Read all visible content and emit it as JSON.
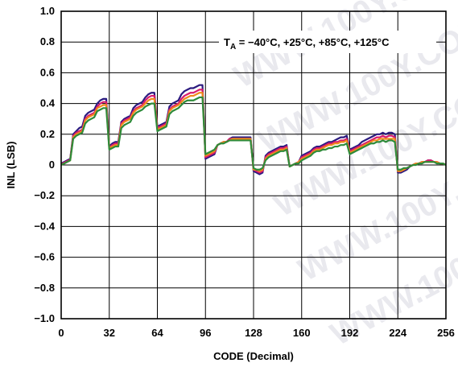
{
  "chart_data": {
    "type": "line",
    "xlabel": "CODE (Decimal)",
    "ylabel": "INL (LSB)",
    "xlim": [
      0,
      256
    ],
    "ylim": [
      -1.0,
      1.0
    ],
    "xticks": [
      0,
      32,
      64,
      96,
      128,
      160,
      192,
      224,
      256
    ],
    "xtick_labels": [
      "0",
      "32",
      "64",
      "96",
      "128",
      "160",
      "192",
      "224",
      "256"
    ],
    "yticks": [
      1.0,
      0.8,
      0.6,
      0.4,
      0.2,
      0,
      -0.2,
      -0.4,
      -0.6,
      -0.8,
      -1.0
    ],
    "ytick_labels": [
      "1.0",
      "0.8",
      "0.6",
      "0.4",
      "0.2",
      "0",
      "−0.2",
      "−0.4",
      "−0.6",
      "−0.8",
      "−1.0"
    ],
    "grid": true,
    "annotation": {
      "prefix": "T",
      "subscript": "A",
      "text": " = −40°C, +25°C, +85°C, +125°C"
    },
    "watermark": "WWW.100Y.COM.TW",
    "x": [
      0,
      2,
      4,
      6,
      8,
      10,
      12,
      14,
      16,
      18,
      20,
      22,
      24,
      26,
      28,
      30,
      32,
      34,
      36,
      38,
      40,
      42,
      44,
      46,
      48,
      50,
      52,
      54,
      56,
      58,
      60,
      62,
      64,
      66,
      68,
      70,
      72,
      74,
      76,
      78,
      80,
      82,
      84,
      86,
      88,
      90,
      92,
      94,
      96,
      98,
      100,
      102,
      104,
      106,
      108,
      110,
      112,
      114,
      116,
      118,
      120,
      122,
      124,
      126,
      128,
      130,
      132,
      134,
      136,
      138,
      140,
      142,
      144,
      146,
      148,
      150,
      152,
      154,
      156,
      158,
      160,
      162,
      164,
      166,
      168,
      170,
      172,
      174,
      176,
      178,
      180,
      182,
      184,
      186,
      188,
      190,
      192,
      194,
      196,
      198,
      200,
      202,
      204,
      206,
      208,
      210,
      212,
      214,
      216,
      218,
      220,
      222,
      224,
      226,
      228,
      230,
      232,
      234,
      236,
      238,
      240,
      242,
      244,
      246,
      248,
      250,
      252,
      254,
      256
    ],
    "series": [
      {
        "color": "#2b1a7f",
        "values": [
          0.01,
          0.02,
          0.03,
          0.04,
          0.2,
          0.22,
          0.24,
          0.25,
          0.32,
          0.34,
          0.35,
          0.36,
          0.4,
          0.42,
          0.43,
          0.43,
          0.12,
          0.14,
          0.15,
          0.15,
          0.28,
          0.3,
          0.31,
          0.32,
          0.37,
          0.39,
          0.4,
          0.41,
          0.44,
          0.46,
          0.47,
          0.47,
          0.25,
          0.26,
          0.27,
          0.28,
          0.38,
          0.4,
          0.41,
          0.42,
          0.46,
          0.48,
          0.49,
          0.5,
          0.5,
          0.51,
          0.52,
          0.52,
          0.04,
          0.05,
          0.06,
          0.07,
          0.13,
          0.14,
          0.15,
          0.15,
          0.17,
          0.18,
          0.18,
          0.18,
          0.18,
          0.18,
          0.18,
          0.18,
          -0.04,
          -0.05,
          -0.06,
          -0.05,
          0.06,
          0.08,
          0.09,
          0.1,
          0.11,
          0.12,
          0.12,
          0.13,
          -0.01,
          0.0,
          0.01,
          0.02,
          0.06,
          0.07,
          0.08,
          0.09,
          0.11,
          0.12,
          0.12,
          0.13,
          0.14,
          0.15,
          0.15,
          0.16,
          0.17,
          0.18,
          0.18,
          0.19,
          0.1,
          0.11,
          0.12,
          0.13,
          0.15,
          0.16,
          0.17,
          0.18,
          0.19,
          0.2,
          0.2,
          0.21,
          0.2,
          0.21,
          0.21,
          0.2,
          -0.05,
          -0.05,
          -0.04,
          -0.03,
          -0.01,
          0.0,
          0.01,
          0.01,
          0.02,
          0.02,
          0.03,
          0.03,
          0.02,
          0.02,
          0.01,
          0.01,
          0.0
        ]
      },
      {
        "color": "#d81b6e",
        "values": [
          0.005,
          0.015,
          0.025,
          0.035,
          0.19,
          0.21,
          0.22,
          0.23,
          0.3,
          0.32,
          0.33,
          0.34,
          0.38,
          0.4,
          0.41,
          0.41,
          0.11,
          0.13,
          0.14,
          0.14,
          0.27,
          0.29,
          0.3,
          0.31,
          0.35,
          0.37,
          0.38,
          0.39,
          0.42,
          0.44,
          0.45,
          0.45,
          0.24,
          0.25,
          0.26,
          0.27,
          0.36,
          0.38,
          0.39,
          0.4,
          0.43,
          0.45,
          0.46,
          0.47,
          0.47,
          0.48,
          0.49,
          0.49,
          0.05,
          0.06,
          0.07,
          0.08,
          0.13,
          0.14,
          0.15,
          0.15,
          0.17,
          0.17,
          0.17,
          0.17,
          0.17,
          0.17,
          0.17,
          0.17,
          -0.03,
          -0.04,
          -0.05,
          -0.04,
          0.05,
          0.07,
          0.08,
          0.09,
          0.1,
          0.11,
          0.11,
          0.12,
          -0.01,
          0.0,
          0.01,
          0.02,
          0.05,
          0.06,
          0.07,
          0.08,
          0.1,
          0.11,
          0.11,
          0.12,
          0.13,
          0.14,
          0.14,
          0.15,
          0.15,
          0.16,
          0.16,
          0.17,
          0.09,
          0.1,
          0.11,
          0.12,
          0.13,
          0.14,
          0.15,
          0.16,
          0.17,
          0.18,
          0.18,
          0.19,
          0.18,
          0.19,
          0.19,
          0.18,
          -0.04,
          -0.04,
          -0.03,
          -0.02,
          -0.01,
          0.0,
          0.01,
          0.01,
          0.02,
          0.02,
          0.03,
          0.03,
          0.02,
          0.02,
          0.01,
          0.01,
          0.0
        ]
      },
      {
        "color": "#f08a1c",
        "values": [
          0.0,
          0.01,
          0.02,
          0.03,
          0.18,
          0.2,
          0.21,
          0.22,
          0.29,
          0.31,
          0.32,
          0.33,
          0.37,
          0.38,
          0.39,
          0.39,
          0.11,
          0.12,
          0.13,
          0.13,
          0.26,
          0.28,
          0.29,
          0.3,
          0.34,
          0.36,
          0.37,
          0.38,
          0.4,
          0.42,
          0.43,
          0.43,
          0.23,
          0.24,
          0.25,
          0.26,
          0.35,
          0.37,
          0.38,
          0.39,
          0.41,
          0.43,
          0.44,
          0.45,
          0.45,
          0.46,
          0.47,
          0.47,
          0.06,
          0.07,
          0.08,
          0.09,
          0.13,
          0.14,
          0.15,
          0.15,
          0.16,
          0.17,
          0.17,
          0.17,
          0.17,
          0.17,
          0.17,
          0.17,
          -0.03,
          -0.03,
          -0.04,
          -0.03,
          0.04,
          0.06,
          0.07,
          0.08,
          0.09,
          0.1,
          0.1,
          0.11,
          -0.01,
          0.0,
          0.01,
          0.02,
          0.04,
          0.05,
          0.06,
          0.07,
          0.09,
          0.1,
          0.1,
          0.11,
          0.12,
          0.13,
          0.13,
          0.14,
          0.14,
          0.15,
          0.15,
          0.16,
          0.08,
          0.09,
          0.1,
          0.11,
          0.12,
          0.13,
          0.14,
          0.15,
          0.16,
          0.16,
          0.17,
          0.17,
          0.17,
          0.17,
          0.17,
          0.17,
          -0.04,
          -0.04,
          -0.03,
          -0.02,
          -0.01,
          0.0,
          0.01,
          0.01,
          0.02,
          0.02,
          0.02,
          0.02,
          0.02,
          0.02,
          0.01,
          0.01,
          0.0
        ]
      },
      {
        "color": "#2e8b3a",
        "values": [
          0.0,
          0.01,
          0.02,
          0.03,
          0.17,
          0.19,
          0.2,
          0.21,
          0.27,
          0.29,
          0.3,
          0.31,
          0.35,
          0.36,
          0.37,
          0.37,
          0.1,
          0.11,
          0.12,
          0.12,
          0.24,
          0.26,
          0.27,
          0.28,
          0.32,
          0.34,
          0.35,
          0.36,
          0.38,
          0.39,
          0.4,
          0.4,
          0.22,
          0.23,
          0.24,
          0.25,
          0.33,
          0.35,
          0.36,
          0.37,
          0.39,
          0.41,
          0.42,
          0.42,
          0.42,
          0.43,
          0.44,
          0.44,
          0.07,
          0.08,
          0.09,
          0.1,
          0.13,
          0.14,
          0.14,
          0.15,
          0.16,
          0.16,
          0.16,
          0.16,
          0.16,
          0.16,
          0.16,
          0.16,
          -0.02,
          -0.03,
          -0.03,
          -0.02,
          0.03,
          0.05,
          0.06,
          0.07,
          0.08,
          0.09,
          0.09,
          0.1,
          -0.01,
          0.0,
          0.01,
          0.01,
          0.03,
          0.04,
          0.05,
          0.06,
          0.08,
          0.09,
          0.09,
          0.1,
          0.1,
          0.11,
          0.11,
          0.12,
          0.12,
          0.13,
          0.13,
          0.14,
          0.07,
          0.08,
          0.09,
          0.1,
          0.11,
          0.12,
          0.13,
          0.14,
          0.14,
          0.15,
          0.15,
          0.16,
          0.15,
          0.16,
          0.16,
          0.15,
          -0.03,
          -0.03,
          -0.02,
          -0.02,
          -0.01,
          0.0,
          0.0,
          0.01,
          0.01,
          0.02,
          0.02,
          0.02,
          0.02,
          0.01,
          0.01,
          0.01,
          0.0
        ]
      }
    ]
  }
}
